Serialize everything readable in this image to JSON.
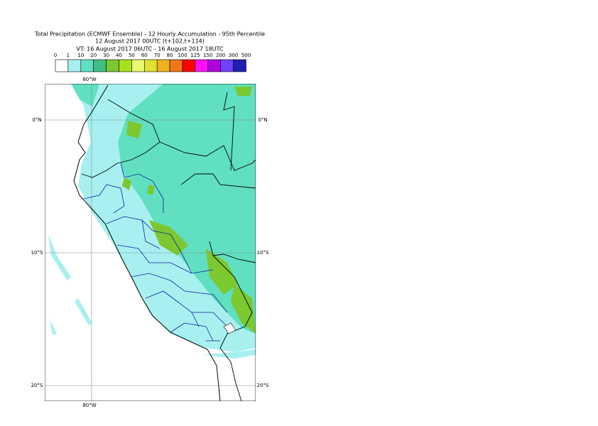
{
  "title": [
    "Total Precipitation (ECMWF Ensemble) - 12 Hourly Accumulation - 95th Percentile",
    "12 August 2017 00UTC (t+102,t+114)",
    "VT: 16 August 2017 06UTC - 16 August 2017 18UTC"
  ],
  "legend": {
    "levels": [
      0,
      1,
      10,
      20,
      30,
      40,
      50,
      60,
      70,
      80,
      100,
      125,
      150,
      200,
      300,
      500
    ],
    "colors": [
      "#ffffff",
      "#a8f0f0",
      "#60e0c0",
      "#40c080",
      "#7cc830",
      "#a8e020",
      "#e8f870",
      "#e0e030",
      "#f0b020",
      "#f07818",
      "#ff0000",
      "#ff10ff",
      "#b000e0",
      "#7040ff",
      "#2020b0",
      "#101060"
    ]
  },
  "map": {
    "lon_labels": [
      "80°W"
    ],
    "lat_labels": [
      "0°N",
      "10°S",
      "20°S"
    ]
  }
}
